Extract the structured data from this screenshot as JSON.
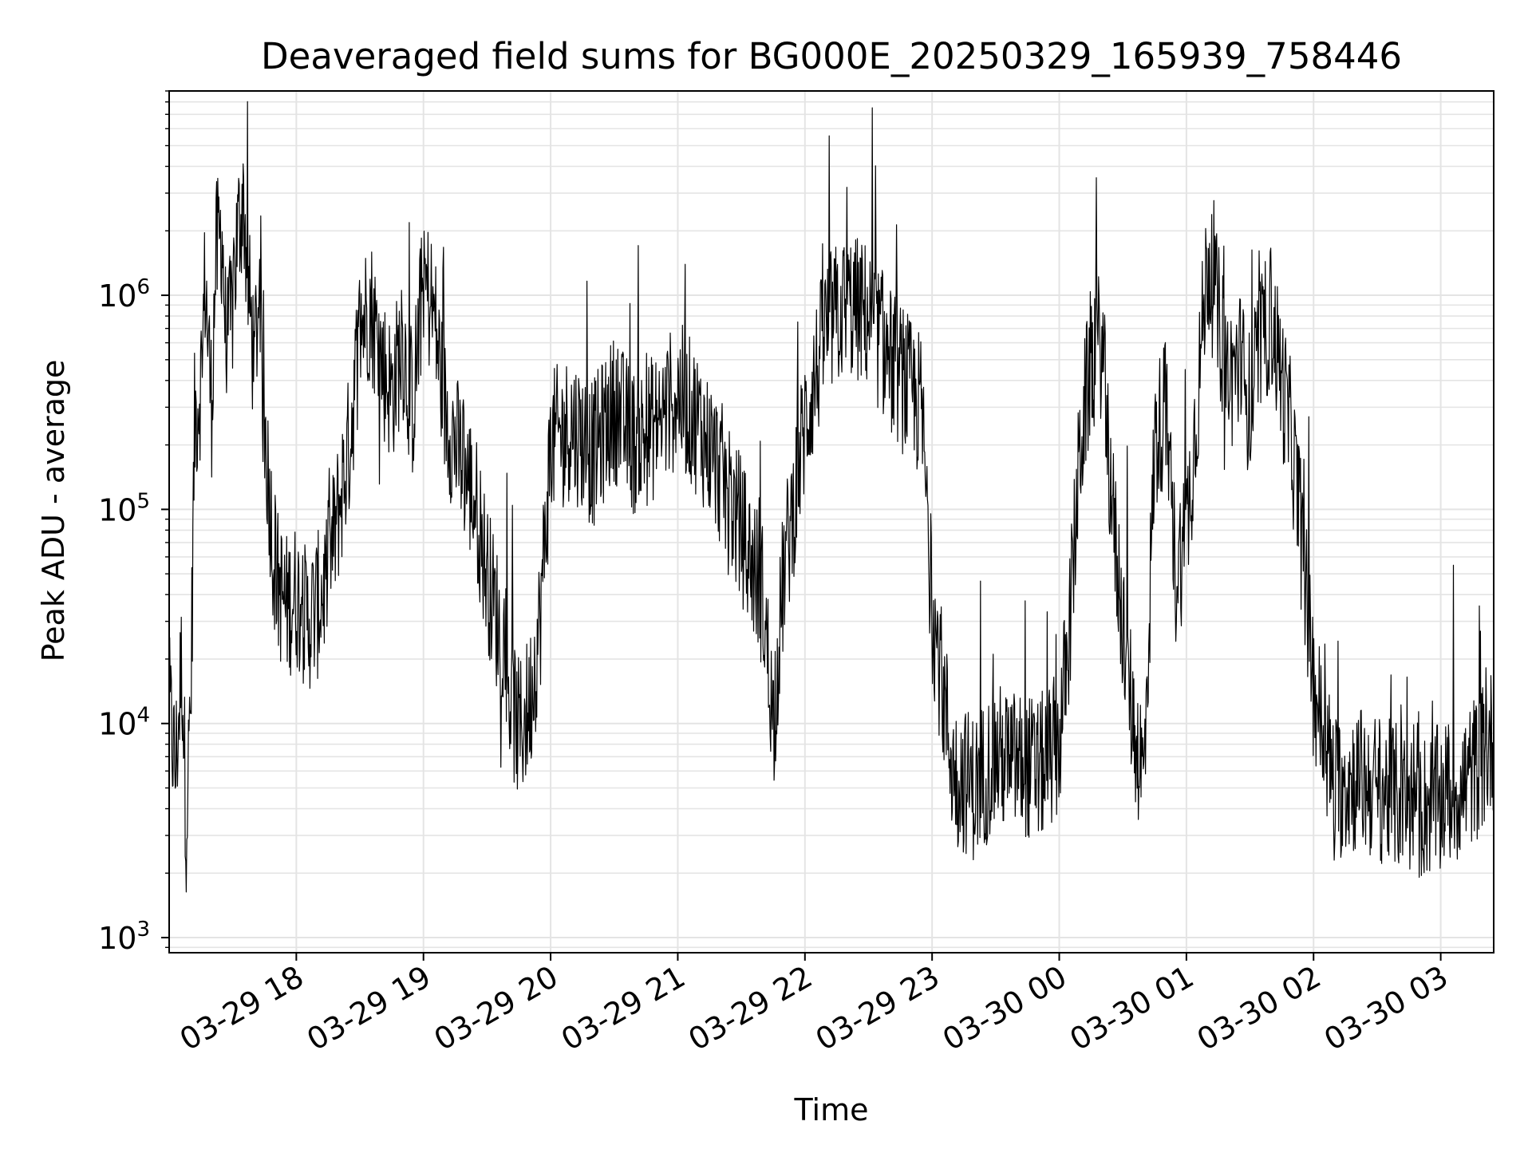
{
  "chart_data": {
    "type": "line",
    "title": "Deaveraged field sums for BG000E_20250329_165939_758446",
    "xlabel": "Time",
    "ylabel": "Peak ADU - average",
    "yscale": "log",
    "xlim": [
      "2025-03-29 17:00",
      "2025-03-30 03:25"
    ],
    "ylim": [
      850,
      9000000
    ],
    "x_ticks": [
      "03-29 18",
      "03-29 19",
      "03-29 20",
      "03-29 21",
      "03-29 22",
      "03-29 23",
      "03-30 00",
      "03-30 01",
      "03-30 02",
      "03-30 03"
    ],
    "y_ticks": [
      {
        "base": "10",
        "exp": "3",
        "value": 1000
      },
      {
        "base": "10",
        "exp": "4",
        "value": 10000
      },
      {
        "base": "10",
        "exp": "5",
        "value": 100000
      },
      {
        "base": "10",
        "exp": "6",
        "value": 1000000
      }
    ],
    "grid": true,
    "line_color": "#000000",
    "series": [
      {
        "x": [
          "2025-03-29 17:00",
          "2025-03-29 17:03",
          "2025-03-29 17:06",
          "2025-03-29 17:08",
          "2025-03-29 17:10",
          "2025-03-29 17:12",
          "2025-03-29 17:15",
          "2025-03-29 17:17",
          "2025-03-29 17:20",
          "2025-03-29 17:22",
          "2025-03-29 17:25",
          "2025-03-29 17:27",
          "2025-03-29 17:30",
          "2025-03-29 17:32",
          "2025-03-29 17:35",
          "2025-03-29 17:37",
          "2025-03-29 17:40",
          "2025-03-29 17:42",
          "2025-03-29 17:45",
          "2025-03-29 17:50",
          "2025-03-29 17:55",
          "2025-03-29 18:00",
          "2025-03-29 18:05",
          "2025-03-29 18:10",
          "2025-03-29 18:15",
          "2025-03-29 18:20",
          "2025-03-29 18:25",
          "2025-03-29 18:30",
          "2025-03-29 18:35",
          "2025-03-29 18:40",
          "2025-03-29 18:45",
          "2025-03-29 18:50",
          "2025-03-29 18:55",
          "2025-03-29 19:00",
          "2025-03-29 19:05",
          "2025-03-29 19:10",
          "2025-03-29 19:15",
          "2025-03-29 19:20",
          "2025-03-29 19:25",
          "2025-03-29 19:30",
          "2025-03-29 19:35",
          "2025-03-29 19:40",
          "2025-03-29 19:45",
          "2025-03-29 19:50",
          "2025-03-29 19:55",
          "2025-03-29 20:00",
          "2025-03-29 20:10",
          "2025-03-29 20:20",
          "2025-03-29 20:30",
          "2025-03-29 20:40",
          "2025-03-29 20:50",
          "2025-03-29 21:00",
          "2025-03-29 21:10",
          "2025-03-29 21:20",
          "2025-03-29 21:30",
          "2025-03-29 21:40",
          "2025-03-29 21:45",
          "2025-03-29 21:50",
          "2025-03-29 22:00",
          "2025-03-29 22:10",
          "2025-03-29 22:20",
          "2025-03-29 22:30",
          "2025-03-29 22:40",
          "2025-03-29 22:50",
          "2025-03-29 22:55",
          "2025-03-29 23:00",
          "2025-03-29 23:10",
          "2025-03-29 23:20",
          "2025-03-29 23:30",
          "2025-03-29 23:40",
          "2025-03-29 23:50",
          "2025-03-30 00:00",
          "2025-03-30 00:05",
          "2025-03-30 00:10",
          "2025-03-30 00:15",
          "2025-03-30 00:20",
          "2025-03-30 00:25",
          "2025-03-30 00:30",
          "2025-03-30 00:35",
          "2025-03-30 00:40",
          "2025-03-30 00:45",
          "2025-03-30 00:50",
          "2025-03-30 00:55",
          "2025-03-30 01:00",
          "2025-03-30 01:05",
          "2025-03-30 01:10",
          "2025-03-30 01:15",
          "2025-03-30 01:20",
          "2025-03-30 01:25",
          "2025-03-30 01:30",
          "2025-03-30 01:35",
          "2025-03-30 01:40",
          "2025-03-30 01:45",
          "2025-03-30 01:50",
          "2025-03-30 01:55",
          "2025-03-30 02:00",
          "2025-03-30 02:10",
          "2025-03-30 02:20",
          "2025-03-30 02:30",
          "2025-03-30 02:40",
          "2025-03-30 02:50",
          "2025-03-30 03:00",
          "2025-03-30 03:10",
          "2025-03-30 03:20",
          "2025-03-30 03:25"
        ],
        "y": [
          12000,
          6000,
          20000,
          3500,
          9000,
          250000,
          400000,
          1200000,
          300000,
          1500000,
          2000000,
          500000,
          900000,
          1800000,
          3000000,
          1200000,
          500000,
          900000,
          250000,
          50000,
          35000,
          40000,
          30000,
          35000,
          50000,
          100000,
          200000,
          700000,
          900000,
          500000,
          350000,
          600000,
          300000,
          1200000,
          800000,
          300000,
          200000,
          150000,
          100000,
          50000,
          30000,
          15000,
          9000,
          12000,
          30000,
          200000,
          250000,
          180000,
          300000,
          200000,
          250000,
          350000,
          250000,
          150000,
          80000,
          40000,
          10000,
          50000,
          250000,
          700000,
          900000,
          800000,
          500000,
          350000,
          300000,
          35000,
          6000,
          5000,
          7000,
          6500,
          6000,
          8000,
          30000,
          200000,
          500000,
          600000,
          100000,
          30000,
          10000,
          5500,
          200000,
          300000,
          50000,
          80000,
          300000,
          1500000,
          800000,
          400000,
          500000,
          300000,
          600000,
          800000,
          400000,
          200000,
          60000,
          15000,
          5000,
          5500,
          5000,
          4500,
          4000,
          4500,
          5000,
          7000,
          8500
        ]
      }
    ]
  }
}
